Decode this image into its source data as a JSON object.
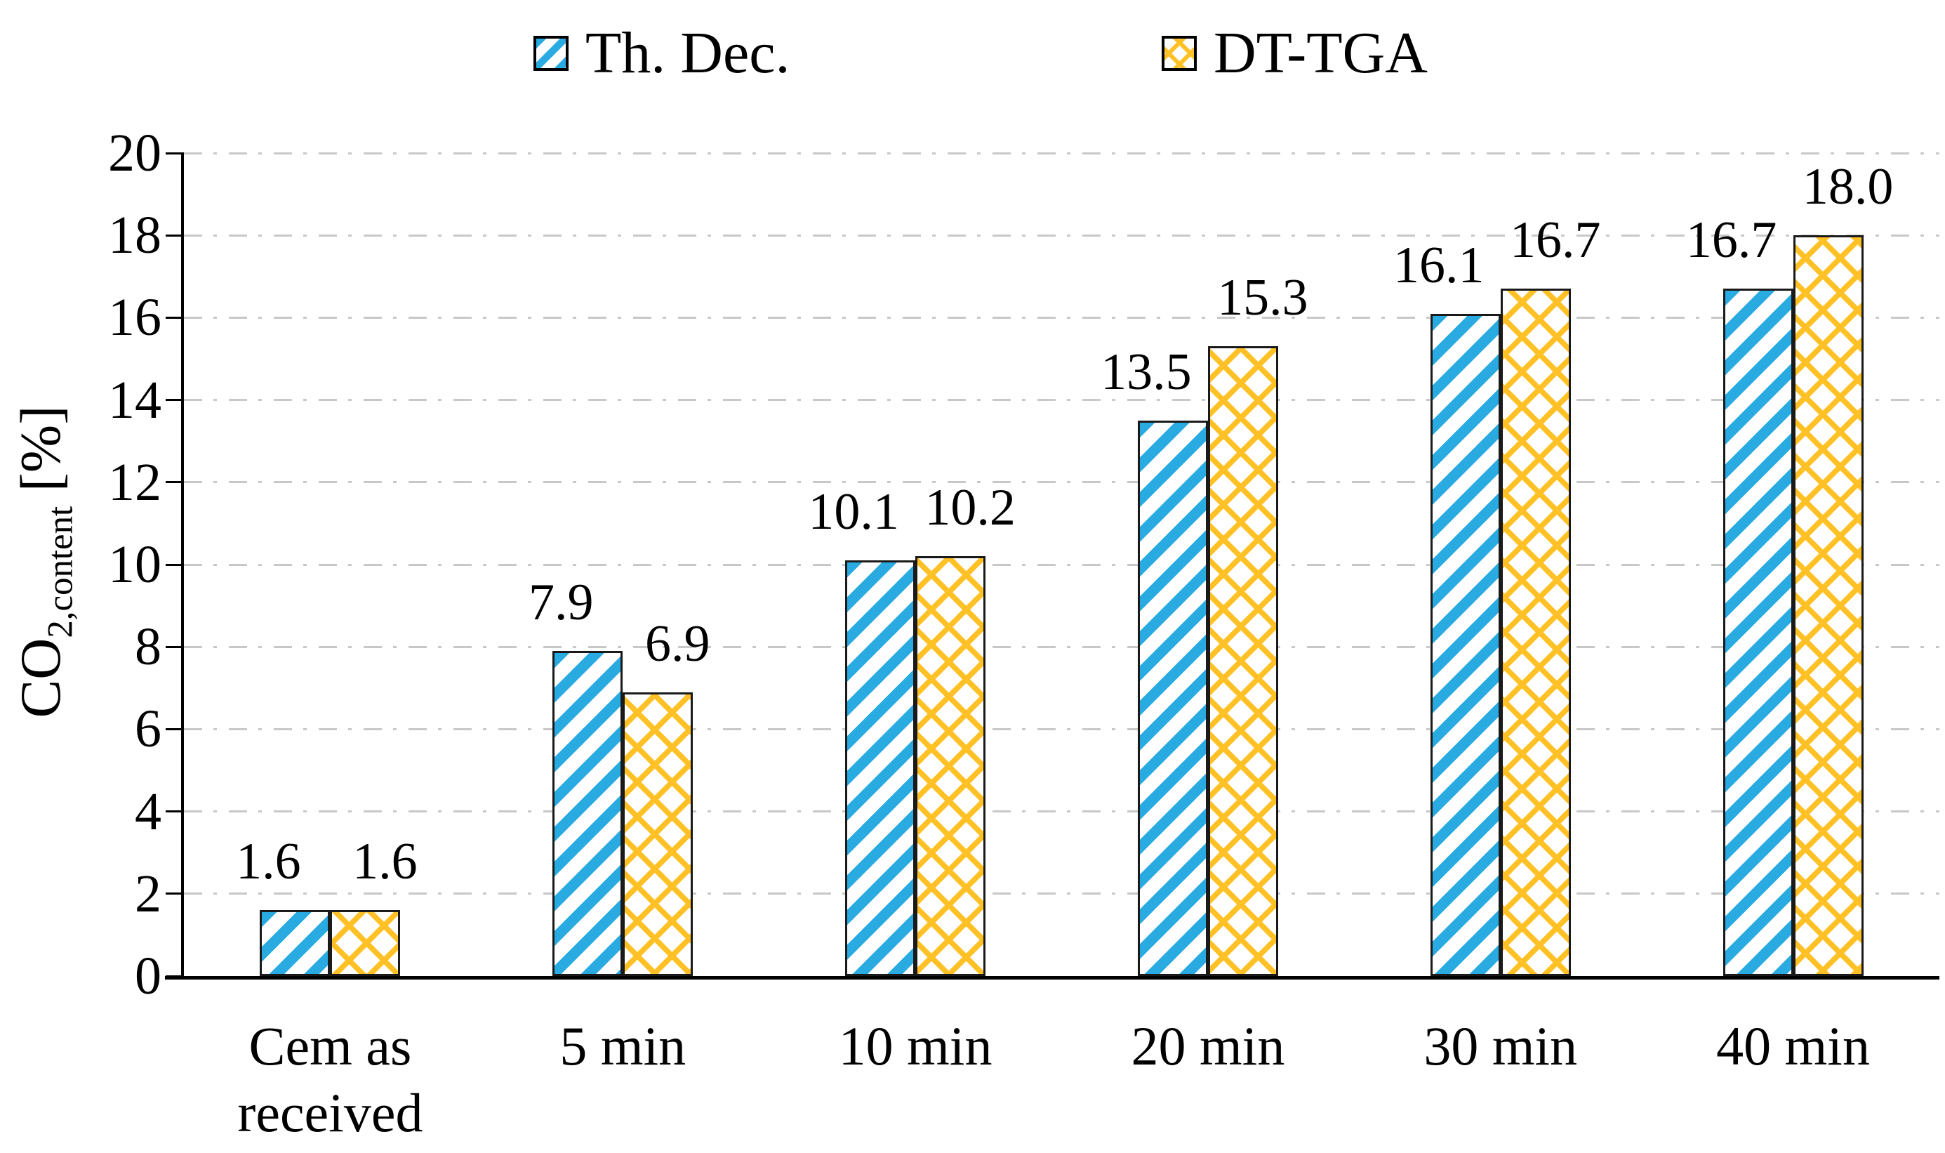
{
  "chart_data": {
    "type": "bar",
    "title": "",
    "categories": [
      "Cem as received",
      "5 min",
      "10 min",
      "20 min",
      "30 min",
      "40 min"
    ],
    "series": [
      {
        "name": "Th. Dec.",
        "pattern": "blue-diagonal-stripes",
        "color": "#29ABE2",
        "values": [
          1.6,
          7.9,
          10.1,
          13.5,
          16.1,
          16.7
        ],
        "labels": [
          "1.6",
          "7.9",
          "10.1",
          "13.5",
          "16.1",
          "16.7"
        ]
      },
      {
        "name": "DT-TGA",
        "pattern": "yellow-diamond-crosshatch",
        "color": "#FFC125",
        "values": [
          1.6,
          6.9,
          10.2,
          15.3,
          16.7,
          18.0
        ],
        "labels": [
          "1.6",
          "6.9",
          "10.2",
          "15.3",
          "16.7",
          "18.0"
        ]
      }
    ],
    "xlabel": "",
    "ylabel": "CO2,content [%]",
    "ylabel_parts": {
      "base": "CO",
      "subscript": "2,content",
      "unit": " [%]"
    },
    "ylim": [
      0,
      20
    ],
    "ytick_step": 2,
    "yticks": [
      "0",
      "2",
      "4",
      "6",
      "8",
      "10",
      "12",
      "14",
      "16",
      "18",
      "20"
    ],
    "grid": "horizontal-dashed",
    "legend_position": "top"
  },
  "colors": {
    "series_th_dec": "#29ABE2",
    "series_dt_tga": "#FFC125",
    "gridline": "#C8C8C8",
    "axis": "#000000",
    "bar_border": "#1A1A1A",
    "background": "#FFFFFF",
    "text": "#000000"
  }
}
